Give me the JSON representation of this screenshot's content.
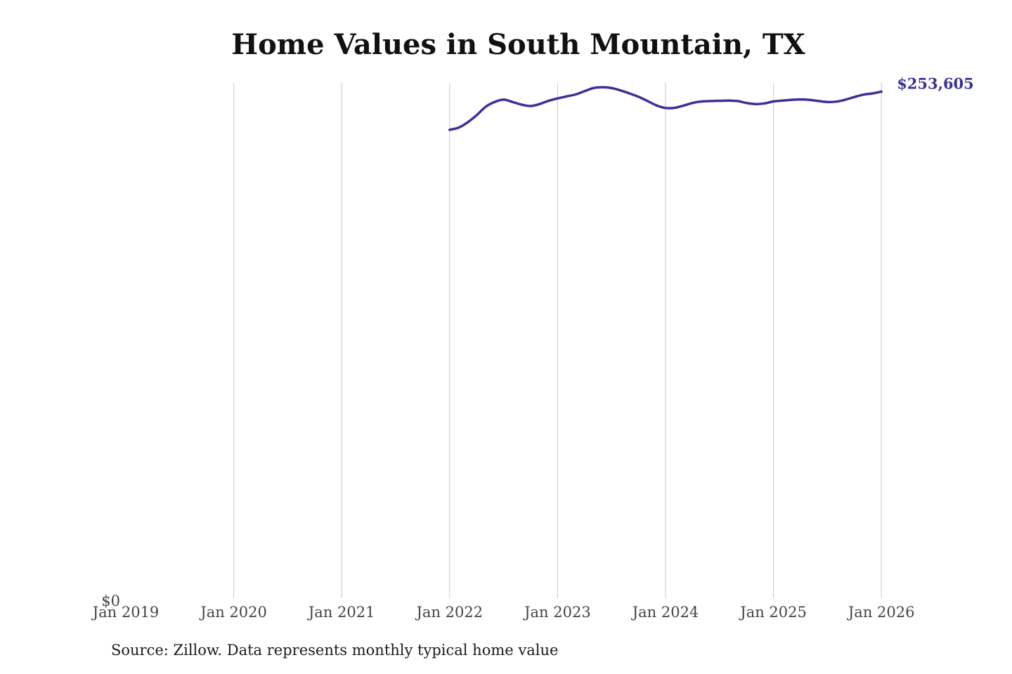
{
  "chart_data": {
    "type": "line",
    "title": "Home Values in South Mountain, TX",
    "xlabel": "",
    "ylabel": "",
    "x_ticks": [
      "Jan 2019",
      "Jan 2020",
      "Jan 2021",
      "Jan 2022",
      "Jan 2023",
      "Jan 2024",
      "Jan 2025",
      "Jan 2026"
    ],
    "y_ticks": [
      "$0"
    ],
    "ylim": [
      0,
      258000
    ],
    "grid": "vertical",
    "series": [
      {
        "color": "#3a3196",
        "x": [
          "2022-01",
          "2022-02",
          "2022-03",
          "2022-04",
          "2022-05",
          "2022-06",
          "2022-07",
          "2022-08",
          "2022-09",
          "2022-10",
          "2022-11",
          "2022-12",
          "2023-01",
          "2023-02",
          "2023-03",
          "2023-04",
          "2023-05",
          "2023-06",
          "2023-07",
          "2023-08",
          "2023-09",
          "2023-10",
          "2023-11",
          "2023-12",
          "2024-01",
          "2024-02",
          "2024-03",
          "2024-04",
          "2024-05",
          "2024-06",
          "2024-07",
          "2024-08",
          "2024-09",
          "2024-10",
          "2024-11",
          "2024-12",
          "2025-01",
          "2025-02",
          "2025-03",
          "2025-04",
          "2025-05",
          "2025-06",
          "2025-07",
          "2025-08",
          "2025-09",
          "2025-10",
          "2025-11",
          "2025-12",
          "2026-01"
        ],
        "values": [
          234500,
          235600,
          238200,
          241800,
          246000,
          248400,
          249600,
          248400,
          247100,
          246400,
          247400,
          249000,
          250200,
          251200,
          252200,
          253800,
          255400,
          255800,
          255400,
          254200,
          252700,
          251000,
          248900,
          246700,
          245400,
          245500,
          246600,
          247900,
          248700,
          248900,
          249000,
          249100,
          248900,
          247900,
          247400,
          247700,
          248700,
          249100,
          249500,
          249700,
          249500,
          248900,
          248400,
          248600,
          249600,
          250900,
          252100,
          252700,
          253605
        ]
      }
    ],
    "end_label": "$253,605"
  },
  "source": "Source: Zillow. Data represents monthly typical home value"
}
